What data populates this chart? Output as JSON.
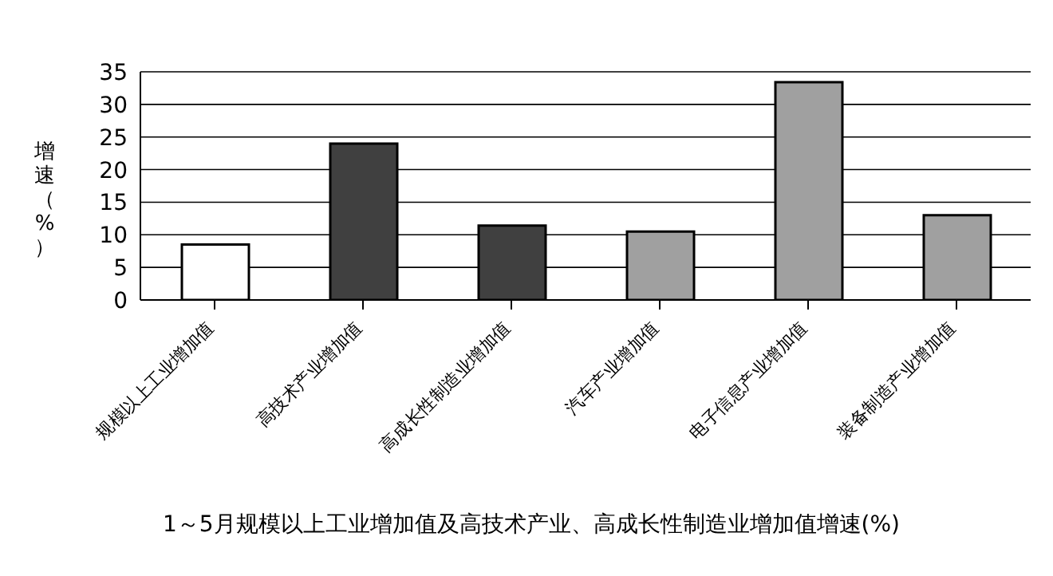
{
  "chart_data": {
    "type": "bar",
    "title": "1～5月规模以上工业增加值及高技术产业、高成长性制造业增加值增速(%)",
    "ylabel": "增速（%）",
    "categories": [
      "规模以上工业增加值",
      "高技术产业增加值",
      "高成长性制造业增加值",
      "汽车产业增加值",
      "电子信息产业增加值",
      "装备制造产业增加值"
    ],
    "values": [
      8.5,
      24,
      11.4,
      10.5,
      33.4,
      13
    ],
    "colors": [
      "#ffffff",
      "#404040",
      "#404040",
      "#a0a0a0",
      "#a0a0a0",
      "#a0a0a0"
    ],
    "ylim": [
      0,
      35
    ],
    "yticks": [
      0,
      5,
      10,
      15,
      20,
      25,
      30,
      35
    ],
    "grid": "y"
  }
}
